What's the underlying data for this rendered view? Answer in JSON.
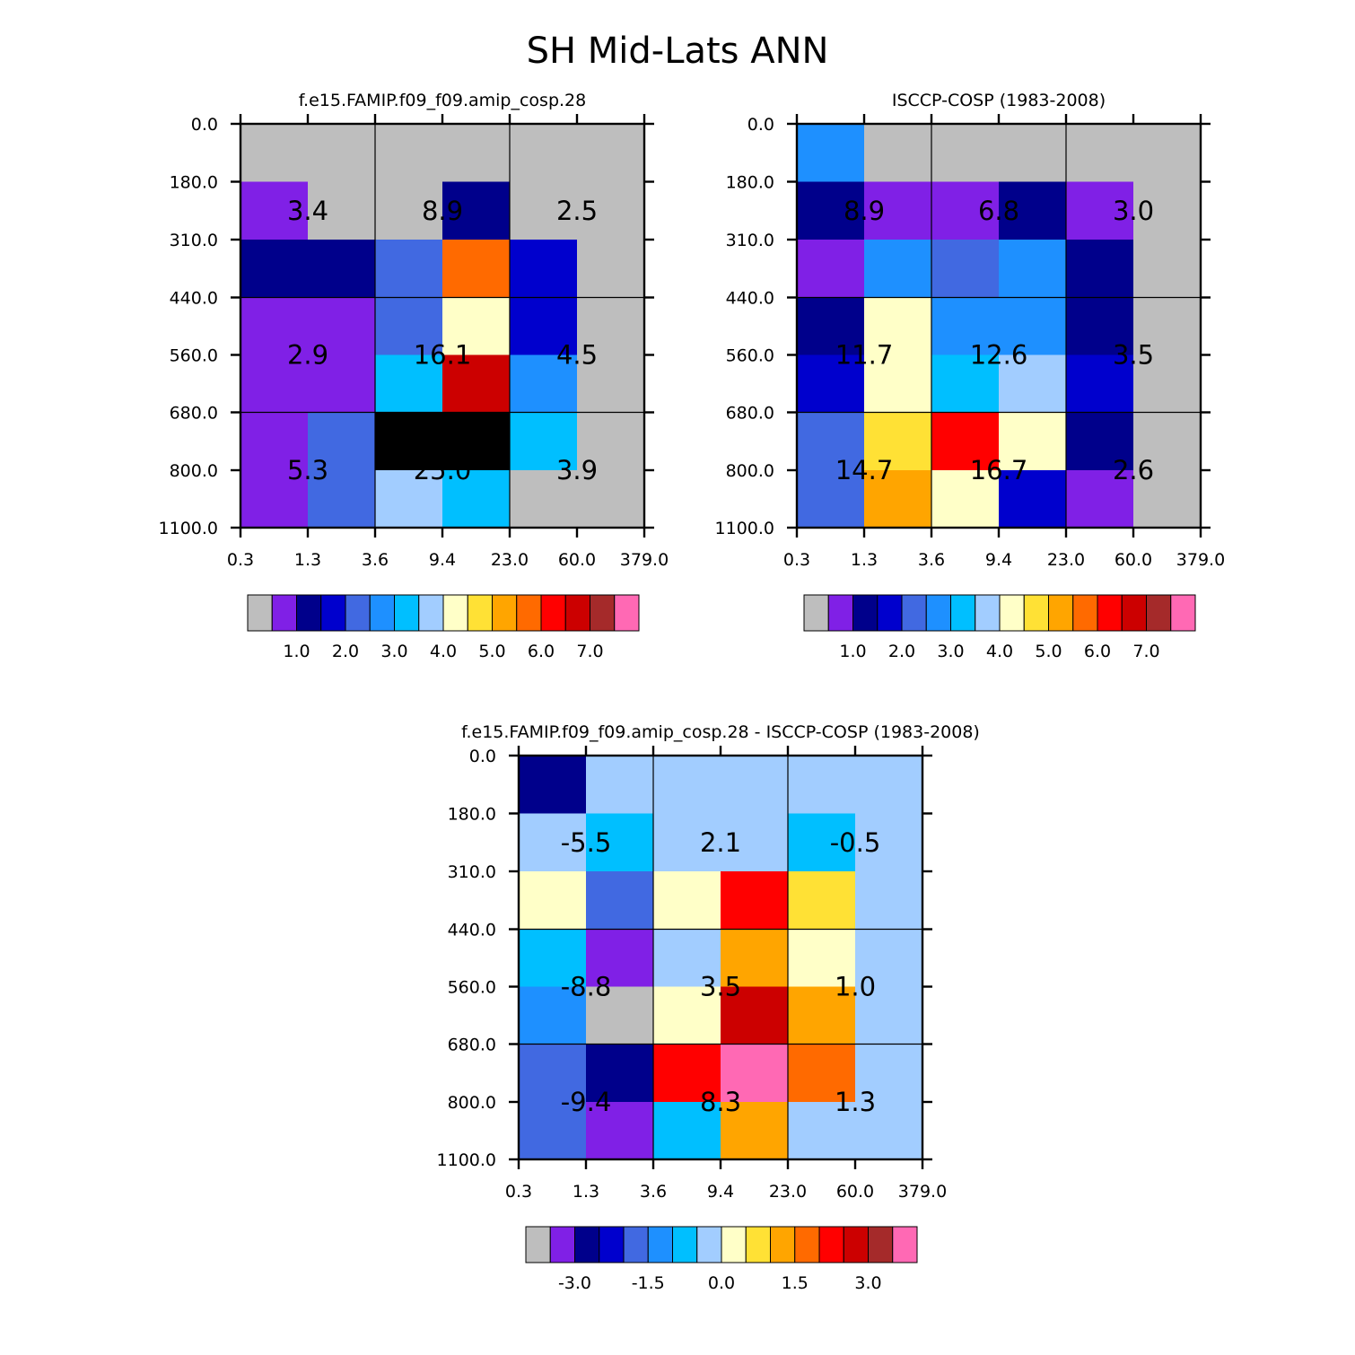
{
  "figure": {
    "title": "SH Mid-Lats ANN"
  },
  "chart_data": [
    {
      "type": "heatmap",
      "title": "f.e15.FAMIP.f09_f09.amip_cosp.28",
      "x_ticks": [
        "0.3",
        "1.3",
        "3.6",
        "9.4",
        "23.0",
        "60.0",
        "379.0"
      ],
      "y_ticks": [
        "0.0",
        "180.0",
        "310.0",
        "440.0",
        "560.0",
        "680.0",
        "800.0",
        "1100.0"
      ],
      "cell_color_indices": [
        [
          0,
          0,
          0,
          0,
          0,
          0
        ],
        [
          1,
          0,
          0,
          2,
          0,
          0
        ],
        [
          2,
          2,
          4,
          11,
          3,
          0
        ],
        [
          1,
          1,
          4,
          8,
          3,
          0
        ],
        [
          1,
          1,
          6,
          13,
          5,
          0
        ],
        [
          1,
          4,
          16,
          16,
          6,
          0
        ],
        [
          1,
          4,
          7,
          6,
          0,
          0
        ]
      ],
      "box_labels": [
        [
          "3.4",
          "8.9",
          "2.5"
        ],
        [
          "2.9",
          "16.1",
          "4.5"
        ],
        [
          "5.3",
          "25.0",
          "3.9"
        ]
      ],
      "colorbar": {
        "colors": [
          "#bebebe",
          "#8020e6",
          "#00008b",
          "#0000cd",
          "#4169e1",
          "#1e90ff",
          "#00bfff",
          "#a2cdff",
          "#ffffc8",
          "#ffe135",
          "#ffa500",
          "#ff6a00",
          "#ff0000",
          "#cc0000",
          "#a52a2a",
          "#ff69b4"
        ],
        "tick_labels": [
          "1.0",
          "2.0",
          "3.0",
          "4.0",
          "5.0",
          "6.0",
          "7.0"
        ],
        "tick_boundaries": [
          2,
          4,
          6,
          8,
          10,
          12,
          14
        ]
      }
    },
    {
      "type": "heatmap",
      "title": "ISCCP-COSP (1983-2008)",
      "x_ticks": [
        "0.3",
        "1.3",
        "3.6",
        "9.4",
        "23.0",
        "60.0",
        "379.0"
      ],
      "y_ticks": [
        "0.0",
        "180.0",
        "310.0",
        "440.0",
        "560.0",
        "680.0",
        "800.0",
        "1100.0"
      ],
      "cell_color_indices": [
        [
          5,
          0,
          0,
          0,
          0,
          0
        ],
        [
          2,
          1,
          1,
          2,
          1,
          0
        ],
        [
          1,
          5,
          4,
          5,
          2,
          0
        ],
        [
          2,
          8,
          5,
          5,
          2,
          0
        ],
        [
          3,
          8,
          6,
          7,
          3,
          0
        ],
        [
          4,
          9,
          12,
          8,
          2,
          0
        ],
        [
          4,
          10,
          8,
          3,
          1,
          0
        ]
      ],
      "box_labels": [
        [
          "8.9",
          "6.8",
          "3.0"
        ],
        [
          "11.7",
          "12.6",
          "3.5"
        ],
        [
          "14.7",
          "16.7",
          "2.6"
        ]
      ],
      "colorbar": {
        "colors": [
          "#bebebe",
          "#8020e6",
          "#00008b",
          "#0000cd",
          "#4169e1",
          "#1e90ff",
          "#00bfff",
          "#a2cdff",
          "#ffffc8",
          "#ffe135",
          "#ffa500",
          "#ff6a00",
          "#ff0000",
          "#cc0000",
          "#a52a2a",
          "#ff69b4"
        ],
        "tick_labels": [
          "1.0",
          "2.0",
          "3.0",
          "4.0",
          "5.0",
          "6.0",
          "7.0"
        ],
        "tick_boundaries": [
          2,
          4,
          6,
          8,
          10,
          12,
          14
        ]
      }
    },
    {
      "type": "heatmap",
      "title": "f.e15.FAMIP.f09_f09.amip_cosp.28 - ISCCP-COSP (1983-2008)",
      "x_ticks": [
        "0.3",
        "1.3",
        "3.6",
        "9.4",
        "23.0",
        "60.0",
        "379.0"
      ],
      "y_ticks": [
        "0.0",
        "180.0",
        "310.0",
        "440.0",
        "560.0",
        "680.0",
        "800.0",
        "1100.0"
      ],
      "cell_color_indices": [
        [
          2,
          7,
          7,
          7,
          7,
          7
        ],
        [
          7,
          6,
          7,
          7,
          6,
          7
        ],
        [
          8,
          4,
          8,
          12,
          9,
          7
        ],
        [
          6,
          1,
          7,
          10,
          8,
          7
        ],
        [
          5,
          0,
          8,
          13,
          10,
          7
        ],
        [
          4,
          2,
          12,
          15,
          11,
          7
        ],
        [
          4,
          1,
          6,
          10,
          7,
          7
        ]
      ],
      "box_labels": [
        [
          "-5.5",
          "2.1",
          "-0.5"
        ],
        [
          "-8.8",
          "3.5",
          "1.0"
        ],
        [
          "-9.4",
          "8.3",
          "1.3"
        ]
      ],
      "colorbar": {
        "colors": [
          "#bebebe",
          "#8020e6",
          "#00008b",
          "#0000cd",
          "#4169e1",
          "#1e90ff",
          "#00bfff",
          "#a2cdff",
          "#ffffc8",
          "#ffe135",
          "#ffa500",
          "#ff6a00",
          "#ff0000",
          "#cc0000",
          "#a52a2a",
          "#ff69b4"
        ],
        "tick_labels": [
          "-3.0",
          "-1.5",
          "0.0",
          "1.5",
          "3.0"
        ],
        "tick_boundaries": [
          2,
          5,
          8,
          11,
          14
        ]
      }
    }
  ]
}
